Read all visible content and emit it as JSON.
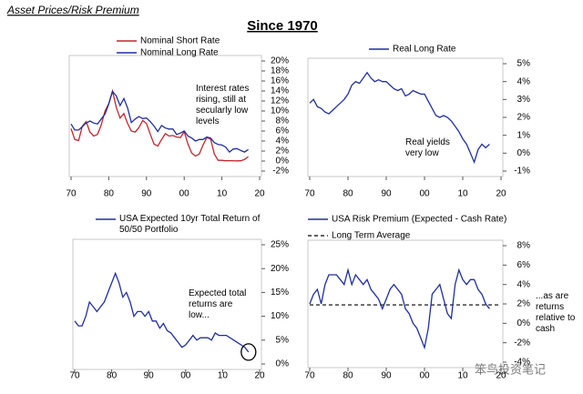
{
  "header": "Asset Prices/Risk Premium",
  "title": "Since 1970",
  "watermark": "笨鸟投资笔记",
  "chart_data": [
    {
      "type": "line",
      "y_axis_side": "right",
      "x": [
        1970,
        1971,
        1972,
        1973,
        1974,
        1975,
        1976,
        1977,
        1978,
        1979,
        1980,
        1981,
        1982,
        1983,
        1984,
        1985,
        1986,
        1987,
        1988,
        1989,
        1990,
        1991,
        1992,
        1993,
        1994,
        1995,
        1996,
        1997,
        1998,
        1999,
        2000,
        2001,
        2002,
        2003,
        2004,
        2005,
        2006,
        2007,
        2008,
        2009,
        2010,
        2011,
        2012,
        2013,
        2014,
        2015,
        2016,
        2017
      ],
      "series": [
        {
          "name": "Nominal Short Rate",
          "color": "#c0272d",
          "values": [
            6.5,
            4.3,
            4.1,
            7,
            7.9,
            5.8,
            5,
            5.3,
            7.2,
            10,
            11.5,
            14,
            10.7,
            8.6,
            9.5,
            7.5,
            6,
            5.8,
            6.7,
            8.1,
            7.5,
            5.4,
            3.4,
            3,
            4.3,
            5.5,
            5,
            5.1,
            4.8,
            4.7,
            5.9,
            3.4,
            1.6,
            1,
            1.4,
            3.2,
            4.7,
            4.4,
            1.4,
            0.15,
            0.14,
            0.05,
            0.09,
            0.06,
            0.03,
            0.05,
            0.3,
            0.9
          ]
        },
        {
          "name": "Nominal Long Rate",
          "color": "#1f2f9e",
          "values": [
            7.4,
            6.2,
            6.2,
            6.9,
            7.6,
            8,
            7.6,
            7.4,
            8.4,
            9.4,
            11.4,
            13.9,
            13,
            11.1,
            12.5,
            10.6,
            7.7,
            8.4,
            8.9,
            8.5,
            8.6,
            7.9,
            7,
            5.9,
            7.1,
            6.6,
            6.4,
            6.4,
            5.3,
            5.6,
            6,
            5,
            4.6,
            4,
            4.3,
            4.3,
            4.8,
            4.6,
            3.7,
            3.3,
            3.2,
            2.8,
            1.8,
            2.4,
            2.5,
            2.1,
            1.8,
            2.3
          ]
        }
      ],
      "xlim": [
        1970,
        2020
      ],
      "xticks": [
        {
          "value": 1970,
          "label": "70"
        },
        {
          "value": 1980,
          "label": "80"
        },
        {
          "value": 1990,
          "label": "90"
        },
        {
          "value": 2000,
          "label": "00"
        },
        {
          "value": 2010,
          "label": "10"
        },
        {
          "value": 2020,
          "label": "20"
        }
      ],
      "ylim": [
        -2,
        20
      ],
      "yticks": [
        {
          "value": -2,
          "label": "-2%"
        },
        {
          "value": 0,
          "label": "0%"
        },
        {
          "value": 2,
          "label": "2%"
        },
        {
          "value": 4,
          "label": "4%"
        },
        {
          "value": 6,
          "label": "6%"
        },
        {
          "value": 8,
          "label": "8%"
        },
        {
          "value": 10,
          "label": "10%"
        },
        {
          "value": 12,
          "label": "12%"
        },
        {
          "value": 14,
          "label": "14%"
        },
        {
          "value": 16,
          "label": "16%"
        },
        {
          "value": 18,
          "label": "18%"
        },
        {
          "value": 20,
          "label": "20%"
        }
      ],
      "annotation": "Interest rates rising, still at secularly low levels"
    },
    {
      "type": "line",
      "y_axis_side": "right",
      "x": [
        1970,
        1971,
        1972,
        1973,
        1974,
        1975,
        1976,
        1977,
        1978,
        1979,
        1980,
        1981,
        1982,
        1983,
        1984,
        1985,
        1986,
        1987,
        1988,
        1989,
        1990,
        1991,
        1992,
        1993,
        1994,
        1995,
        1996,
        1997,
        1998,
        1999,
        2000,
        2001,
        2002,
        2003,
        2004,
        2005,
        2006,
        2007,
        2008,
        2009,
        2010,
        2011,
        2012,
        2013,
        2014,
        2015,
        2016,
        2017
      ],
      "series": [
        {
          "name": "Real Long Rate",
          "color": "#1f2f9e",
          "values": [
            2.8,
            3,
            2.6,
            2.5,
            2.3,
            2.2,
            2.4,
            2.6,
            2.8,
            3,
            3.3,
            3.8,
            4,
            3.9,
            4.2,
            4.5,
            4.2,
            4,
            4.1,
            4,
            4,
            3.8,
            3.6,
            3.5,
            3.6,
            3.2,
            3.3,
            3.5,
            3.4,
            3.3,
            3.3,
            2.9,
            2.5,
            2.1,
            2,
            2.1,
            2,
            1.8,
            1.5,
            1.2,
            0.8,
            0.5,
            0,
            -0.5,
            0.2,
            0.5,
            0.3,
            0.5
          ]
        }
      ],
      "xlim": [
        1970,
        2020
      ],
      "xticks": [
        {
          "value": 1970,
          "label": "70"
        },
        {
          "value": 1980,
          "label": "80"
        },
        {
          "value": 1990,
          "label": "90"
        },
        {
          "value": 2000,
          "label": "00"
        },
        {
          "value": 2010,
          "label": "10"
        },
        {
          "value": 2020,
          "label": "20"
        }
      ],
      "ylim": [
        -1,
        5
      ],
      "yticks": [
        {
          "value": -1,
          "label": "-1%"
        },
        {
          "value": 0,
          "label": "0%"
        },
        {
          "value": 1,
          "label": "1%"
        },
        {
          "value": 2,
          "label": "2%"
        },
        {
          "value": 3,
          "label": "3%"
        },
        {
          "value": 4,
          "label": "4%"
        },
        {
          "value": 5,
          "label": "5%"
        }
      ],
      "annotation": "Real yields very low"
    },
    {
      "type": "line",
      "y_axis_side": "right",
      "x": [
        1970,
        1971,
        1972,
        1973,
        1974,
        1975,
        1976,
        1977,
        1978,
        1979,
        1980,
        1981,
        1982,
        1983,
        1984,
        1985,
        1986,
        1987,
        1988,
        1989,
        1990,
        1991,
        1992,
        1993,
        1994,
        1995,
        1996,
        1997,
        1998,
        1999,
        2000,
        2001,
        2002,
        2003,
        2004,
        2005,
        2006,
        2007,
        2008,
        2009,
        2010,
        2011,
        2012,
        2013,
        2014,
        2015,
        2016,
        2017
      ],
      "series": [
        {
          "name": "USA Expected 10yr Total Return of 50/50 Portfolio",
          "color": "#1f2f9e",
          "values": [
            9,
            8,
            8,
            10,
            13,
            12,
            11,
            12,
            13,
            15,
            17,
            19,
            17,
            14,
            15,
            13,
            10,
            11,
            11,
            10,
            11,
            9,
            9,
            7.5,
            8.5,
            7,
            6.5,
            5.5,
            4.5,
            3.5,
            4,
            5,
            6,
            5,
            5.5,
            5.5,
            5.5,
            5,
            6.5,
            6,
            6,
            6,
            5.5,
            5,
            4.5,
            4,
            3.5,
            2.5
          ]
        }
      ],
      "xlim": [
        1970,
        2020
      ],
      "xticks": [
        {
          "value": 1970,
          "label": "70"
        },
        {
          "value": 1980,
          "label": "80"
        },
        {
          "value": 1990,
          "label": "90"
        },
        {
          "value": 2000,
          "label": "00"
        },
        {
          "value": 2010,
          "label": "10"
        },
        {
          "value": 2020,
          "label": "20"
        }
      ],
      "ylim": [
        0,
        25
      ],
      "yticks": [
        {
          "value": 0,
          "label": "0%"
        },
        {
          "value": 5,
          "label": "5%"
        },
        {
          "value": 10,
          "label": "10%"
        },
        {
          "value": 15,
          "label": "15%"
        },
        {
          "value": 20,
          "label": "20%"
        },
        {
          "value": 25,
          "label": "25%"
        }
      ],
      "annotation": "Expected total returns are low..."
    },
    {
      "type": "line",
      "y_axis_side": "right",
      "x": [
        1970,
        1971,
        1972,
        1973,
        1974,
        1975,
        1976,
        1977,
        1978,
        1979,
        1980,
        1981,
        1982,
        1983,
        1984,
        1985,
        1986,
        1987,
        1988,
        1989,
        1990,
        1991,
        1992,
        1993,
        1994,
        1995,
        1996,
        1997,
        1998,
        1999,
        2000,
        2001,
        2002,
        2003,
        2004,
        2005,
        2006,
        2007,
        2008,
        2009,
        2010,
        2011,
        2012,
        2013,
        2014,
        2015,
        2016,
        2017
      ],
      "series": [
        {
          "name": "USA Risk Premium (Expected - Cash Rate)",
          "color": "#1f2f9e",
          "values": [
            2,
            3,
            3.5,
            2,
            4,
            5,
            5,
            5,
            4.5,
            4,
            5.5,
            4,
            5,
            4.5,
            4,
            4.5,
            3.5,
            3,
            2.5,
            1.5,
            2.5,
            3.5,
            4,
            3.5,
            3,
            1.5,
            1,
            0,
            -0.5,
            -1.5,
            -2.5,
            -0.5,
            3,
            3.5,
            4,
            2.5,
            1,
            0.5,
            4,
            5.5,
            4.5,
            4,
            4.5,
            4.5,
            3.5,
            3,
            2,
            1.5
          ]
        }
      ],
      "reference": {
        "name": "Long Term Average",
        "value": 1.9
      },
      "xlim": [
        1970,
        2020
      ],
      "xticks": [
        {
          "value": 1970,
          "label": "70"
        },
        {
          "value": 1980,
          "label": "80"
        },
        {
          "value": 1990,
          "label": "90"
        },
        {
          "value": 2000,
          "label": "00"
        },
        {
          "value": 2010,
          "label": "10"
        },
        {
          "value": 2020,
          "label": "20"
        }
      ],
      "ylim": [
        -4,
        8
      ],
      "yticks": [
        {
          "value": -4,
          "label": "-4%"
        },
        {
          "value": -2,
          "label": "-2%"
        },
        {
          "value": 0,
          "label": "0%"
        },
        {
          "value": 2,
          "label": "2%"
        },
        {
          "value": 4,
          "label": "4%"
        },
        {
          "value": 6,
          "label": "6%"
        },
        {
          "value": 8,
          "label": "8%"
        }
      ],
      "annotation": "...as are returns relative to cash"
    }
  ]
}
